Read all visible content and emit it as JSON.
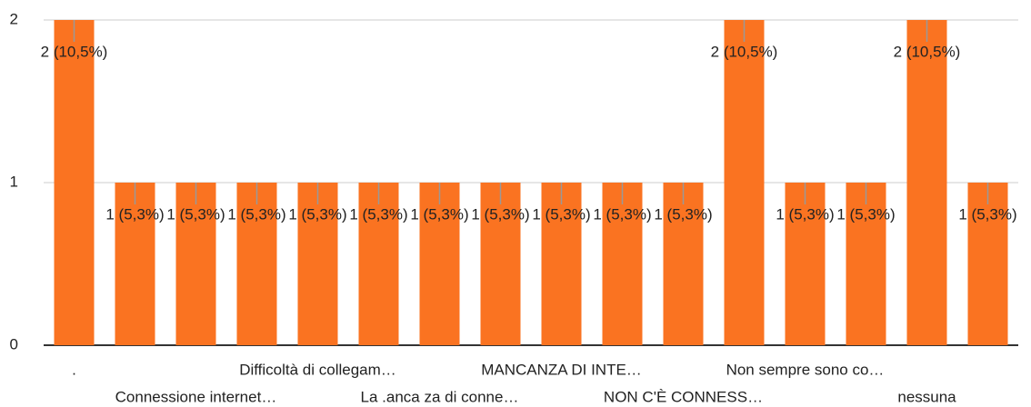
{
  "chart_data": {
    "type": "bar",
    "categories": [
      ".",
      null,
      "Connessione internet…",
      null,
      "Difficoltà di collegam…",
      null,
      "La .anca za di conne…",
      null,
      "MANCANZA DI INTE…",
      null,
      "NON C'È CONNESS…",
      null,
      "Non sempre sono co…",
      null,
      "nessuna",
      null
    ],
    "values": [
      2,
      1,
      1,
      1,
      1,
      1,
      1,
      1,
      1,
      1,
      1,
      2,
      1,
      1,
      2,
      1
    ],
    "value_labels": [
      "2 (10,5%)",
      "1 (5,3%)",
      "1 (5,3%)",
      "1 (5,3%)",
      "1 (5,3%)",
      "1 (5,3%)",
      "1 (5,3%)",
      "1 (5,3%)",
      "1 (5,3%)",
      "1 (5,3%)",
      "1 (5,3%)",
      "2 (10,5%)",
      "1 (5,3%)",
      "1 (5,3%)",
      "2 (10,5%)",
      "1 (5,3%)"
    ],
    "color": "#fa7321",
    "ylim": [
      0,
      2
    ],
    "yticks": [
      0,
      1,
      2
    ],
    "grid": true
  }
}
